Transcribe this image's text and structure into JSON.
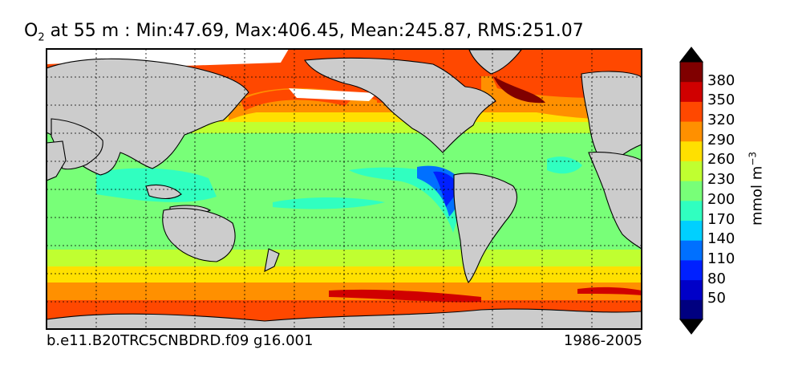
{
  "title": {
    "variable": "O",
    "subscript": "2",
    "text": " at 55 m : Min:47.69, Max:406.45, Mean:245.87, RMS:251.07"
  },
  "footer": {
    "case": "b.e11.B20TRC5CNBDRD.f09 g16.001",
    "period": "1986-2005"
  },
  "colorbar": {
    "unit_base": "mmol m",
    "unit_exp": "−3",
    "ticks": [
      "380",
      "350",
      "320",
      "290",
      "260",
      "230",
      "200",
      "170",
      "140",
      "110",
      "80",
      "50"
    ],
    "colors": [
      "#000080",
      "#0000c8",
      "#0020ff",
      "#0070ff",
      "#00d0ff",
      "#30ffc0",
      "#78ff78",
      "#c0ff30",
      "#ffe000",
      "#ff9000",
      "#ff4800",
      "#d00000",
      "#800000"
    ]
  },
  "colors": {
    "land": "#cccccc",
    "sea_ice": "#ffffff"
  }
}
